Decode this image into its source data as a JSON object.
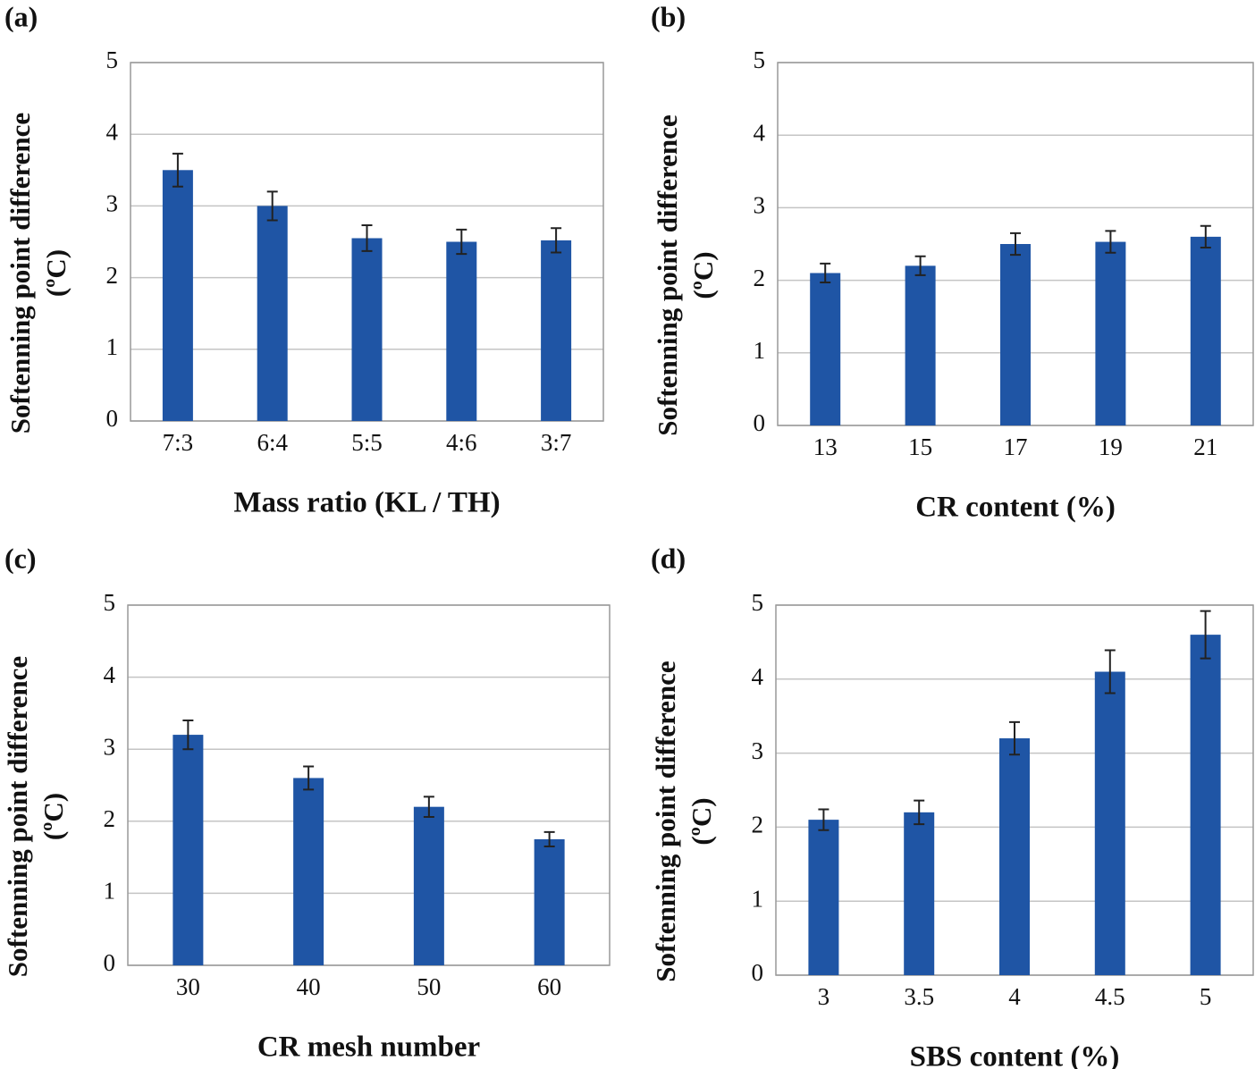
{
  "chart_data": [
    {
      "type": "bar",
      "panel": "(a)",
      "ylabel": [
        "Softenning point difference",
        "(ºC)"
      ],
      "xlabel": "Mass ratio (KL / TH)",
      "categories": [
        "7:3",
        "6:4",
        "5:5",
        "4:6",
        "3:7"
      ],
      "values": [
        3.5,
        3.0,
        2.55,
        2.5,
        2.52
      ],
      "errors": [
        0.23,
        0.2,
        0.18,
        0.17,
        0.17
      ],
      "color": "#1f55a5",
      "ylim": [
        0,
        5
      ],
      "yticks": [
        0,
        1,
        2,
        3,
        4,
        5
      ],
      "grid": true
    },
    {
      "type": "bar",
      "panel": "(b)",
      "ylabel": [
        "Softenning point difference",
        "(ºC)"
      ],
      "xlabel": "CR content (%)",
      "categories": [
        "13",
        "15",
        "17",
        "19",
        "21"
      ],
      "values": [
        2.1,
        2.2,
        2.5,
        2.53,
        2.6
      ],
      "errors": [
        0.13,
        0.13,
        0.15,
        0.15,
        0.15
      ],
      "color": "#1f55a5",
      "ylim": [
        0,
        5
      ],
      "yticks": [
        0,
        1,
        2,
        3,
        4,
        5
      ],
      "grid": true
    },
    {
      "type": "bar",
      "panel": "(c)",
      "ylabel": [
        "Softenning point difference",
        "(ºC)"
      ],
      "xlabel": "CR mesh number",
      "categories": [
        "30",
        "40",
        "50",
        "60"
      ],
      "values": [
        3.2,
        2.6,
        2.2,
        1.75
      ],
      "errors": [
        0.2,
        0.16,
        0.14,
        0.1
      ],
      "color": "#1f55a5",
      "ylim": [
        0,
        5
      ],
      "yticks": [
        0,
        1,
        2,
        3,
        4,
        5
      ],
      "grid": true
    },
    {
      "type": "bar",
      "panel": "(d)",
      "ylabel": [
        "Softenning point difference",
        "(ºC)"
      ],
      "xlabel": "SBS content (%)",
      "categories": [
        "3",
        "3.5",
        "4",
        "4.5",
        "5"
      ],
      "values": [
        2.1,
        2.2,
        3.2,
        4.1,
        4.6
      ],
      "errors": [
        0.14,
        0.16,
        0.22,
        0.29,
        0.32
      ],
      "color": "#1f55a5",
      "ylim": [
        0,
        5
      ],
      "yticks": [
        0,
        1,
        2,
        3,
        4,
        5
      ],
      "grid": true
    }
  ]
}
